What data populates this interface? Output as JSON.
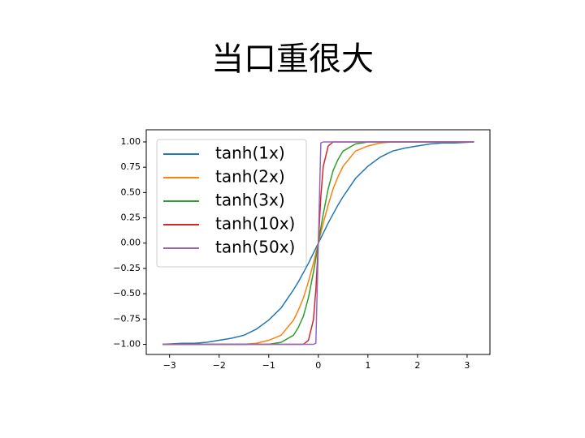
{
  "title": "当口重很大",
  "chart_data": {
    "type": "line",
    "x": [
      -3.14,
      -2.75,
      -2.5,
      -2.25,
      -2,
      -1.75,
      -1.5,
      -1.25,
      -1,
      -0.75,
      -0.5,
      -0.4,
      -0.3,
      -0.2,
      -0.1,
      -0.05,
      0,
      0.05,
      0.1,
      0.2,
      0.3,
      0.4,
      0.5,
      0.75,
      1,
      1.25,
      1.5,
      1.75,
      2,
      2.25,
      2.5,
      2.75,
      3.14
    ],
    "series": [
      {
        "name": "tanh(1x)",
        "color": "#1f77b4",
        "values": [
          -1,
          -0.99,
          -0.99,
          -0.98,
          -0.96,
          -0.94,
          -0.91,
          -0.85,
          -0.76,
          -0.64,
          -0.46,
          -0.38,
          -0.29,
          -0.2,
          -0.1,
          -0.05,
          0,
          0.05,
          0.1,
          0.2,
          0.29,
          0.38,
          0.46,
          0.64,
          0.76,
          0.85,
          0.91,
          0.94,
          0.96,
          0.98,
          0.99,
          0.99,
          1
        ]
      },
      {
        "name": "tanh(2x)",
        "color": "#ff7f0e",
        "values": [
          -1,
          -1,
          -1,
          -1,
          -1,
          -1,
          -1,
          -0.99,
          -0.96,
          -0.91,
          -0.76,
          -0.66,
          -0.54,
          -0.38,
          -0.2,
          -0.1,
          0,
          0.1,
          0.2,
          0.38,
          0.54,
          0.66,
          0.76,
          0.91,
          0.96,
          0.99,
          1,
          1,
          1,
          1,
          1,
          1,
          1
        ]
      },
      {
        "name": "tanh(3x)",
        "color": "#2ca02c",
        "values": [
          -1,
          -1,
          -1,
          -1,
          -1,
          -1,
          -1,
          -1,
          -1,
          -0.98,
          -0.91,
          -0.83,
          -0.72,
          -0.54,
          -0.29,
          -0.15,
          0,
          0.15,
          0.29,
          0.54,
          0.72,
          0.83,
          0.91,
          0.98,
          1,
          1,
          1,
          1,
          1,
          1,
          1,
          1,
          1
        ]
      },
      {
        "name": "tanh(10x)",
        "color": "#d62728",
        "values": [
          -1,
          -1,
          -1,
          -1,
          -1,
          -1,
          -1,
          -1,
          -1,
          -1,
          -1,
          -1,
          -1,
          -0.96,
          -0.76,
          -0.46,
          0,
          0.46,
          0.76,
          0.96,
          1,
          1,
          1,
          1,
          1,
          1,
          1,
          1,
          1,
          1,
          1,
          1,
          1
        ]
      },
      {
        "name": "tanh(50x)",
        "color": "#9467bd",
        "values": [
          -1,
          -1,
          -1,
          -1,
          -1,
          -1,
          -1,
          -1,
          -1,
          -1,
          -1,
          -1,
          -1,
          -1,
          -1,
          -0.99,
          0,
          0.99,
          1,
          1,
          1,
          1,
          1,
          1,
          1,
          1,
          1,
          1,
          1,
          1,
          1,
          1,
          1
        ]
      }
    ],
    "xlim": [
      -3.47,
      3.46
    ],
    "ylim": [
      -1.1,
      1.12
    ],
    "xticks": [
      {
        "value": -3,
        "label": "−3"
      },
      {
        "value": -2,
        "label": "−2"
      },
      {
        "value": -1,
        "label": "−1"
      },
      0,
      1,
      2,
      3
    ],
    "yticks": [
      {
        "value": -1,
        "label": "−1.00"
      },
      {
        "value": -0.75,
        "label": "−0.75"
      },
      {
        "value": -0.5,
        "label": "−0.50"
      },
      {
        "value": -0.25,
        "label": "−0.25"
      },
      {
        "value": 0,
        "label": "0.00"
      },
      {
        "value": 0.25,
        "label": "0.25"
      },
      {
        "value": 0.5,
        "label": "0.50"
      },
      {
        "value": 0.75,
        "label": "0.75"
      },
      {
        "value": 1,
        "label": "1.00"
      }
    ],
    "legend": "upper left",
    "grid": false
  }
}
